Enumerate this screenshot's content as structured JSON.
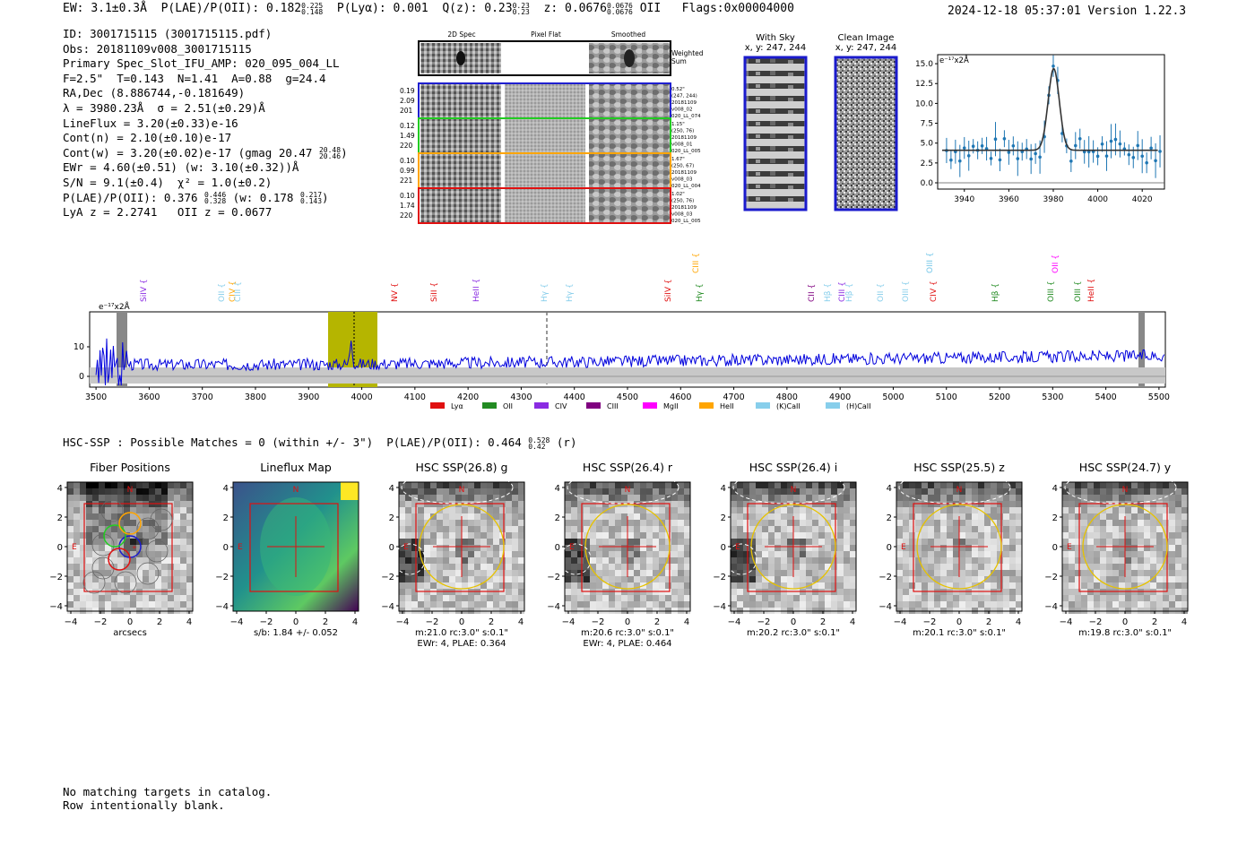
{
  "header": {
    "ew_label": "EW:",
    "ew_value": "3.1±0.3Å",
    "plae_label": "P(LAE)/P(OII):",
    "plae_value": "0.182",
    "plae_hi": "0.225",
    "plae_lo": "0.148",
    "plya_label": "P(Lyα):",
    "plya_value": "0.001",
    "qz_label": "Q(z):",
    "qz_value": "0.23",
    "qz_hi": "0.23",
    "qz_lo": "0.23",
    "z_label": "z:",
    "z_value": "0.0676",
    "z_hi": "0.0676",
    "z_lo": "0.0676",
    "z_line": "OII",
    "flags": "Flags:0x00004000",
    "timestamp": "2024-12-18 05:37:01",
    "version": "Version 1.22.3"
  },
  "info": {
    "id_line": "ID: 3001715115 (3001715115.pdf)",
    "obs_line": "Obs: 20181109v008_3001715115",
    "primary_line": "Primary Spec_Slot_IFU_AMP: 020_095_004_LL",
    "params_line": "F=2.5\"  T=0.143  N=1.41  A=0.88  g=24.4",
    "radec_line": "RA,Dec (8.886744,-0.181649)",
    "lambda_line": "λ = 3980.23Å  σ = 2.51(±0.29)Å",
    "lineflux_line": "LineFlux = 3.20(±0.33)e-16",
    "contn_line": "Cont(n) = 2.10(±0.10)e-17",
    "contw_line": "Cont(w) = 3.20(±0.02)e-17 (gmag 20.47",
    "contw_hi": "20.48",
    "contw_lo": "20.46",
    "contw_end": ")",
    "ewr_line": "EWr = 4.60(±0.51) (w: 3.10(±0.32))Å",
    "sn_line": "S/N = 9.1(±0.4)  χ² = 1.0(±0.2)",
    "plae_line": "P(LAE)/P(OII): 0.376",
    "plae_hi": "0.446",
    "plae_lo": "0.328",
    "plae_w": " (w: 0.178",
    "plae_w_hi": "0.217",
    "plae_w_lo": "0.143",
    "plae_w_end": ")",
    "z_line": "LyA z = 2.2741   OII z = 0.0677"
  },
  "cutouts": {
    "col_headers": [
      "2D Spec",
      "Pixel Flat",
      "Smoothed"
    ],
    "weighted_label": [
      "Weighted",
      "Sum"
    ],
    "rows": [
      {
        "left": [
          "0.19",
          "2.09",
          "201"
        ],
        "right": [
          "0.52\"",
          "(247, 244)",
          "20181109",
          "v008_02",
          "020_LL_074"
        ],
        "color": "#1f1fd0"
      },
      {
        "left": [
          "0.12",
          "1.49",
          "220"
        ],
        "right": [
          "1.15\"",
          "(250, 76)",
          "20181109",
          "v008_01",
          "020_LL_005"
        ],
        "color": "#22cc22"
      },
      {
        "left": [
          "0.10",
          "0.99",
          "221"
        ],
        "right": [
          "1.67\"",
          "(250, 67)",
          "20181109",
          "v008_03",
          "020_LL_004"
        ],
        "color": "#ffa500"
      },
      {
        "left": [
          "0.10",
          "1.74",
          "220"
        ],
        "right": [
          "1.02\"",
          "(250, 76)",
          "20181109",
          "v008_03",
          "020_LL_005"
        ],
        "color": "#e01010"
      }
    ]
  },
  "sky_panels": {
    "with_sky_title": "With Sky",
    "with_sky_coords": "x, y: 247, 244",
    "clean_title": "Clean Image",
    "clean_coords": "x, y: 247, 244"
  },
  "zoom_plot": {
    "unit_label": "e⁻¹⁷x2Å",
    "y_ticks": [
      "15.0",
      "12.5",
      "10.0",
      "7.5",
      "5.0",
      "2.5",
      "0.0"
    ],
    "x_ticks": [
      "3940",
      "3960",
      "3980",
      "4000",
      "4020"
    ]
  },
  "full_spectrum": {
    "unit_label": "e⁻¹⁷x2Å",
    "y_ticks": [
      "10",
      "0"
    ],
    "x_ticks": [
      "3500",
      "3600",
      "3700",
      "3800",
      "3900",
      "4000",
      "4100",
      "4200",
      "4300",
      "4400",
      "4500",
      "4600",
      "4700",
      "4800",
      "4900",
      "5000",
      "5100",
      "5200",
      "5300",
      "5400",
      "5500"
    ],
    "lines": [
      {
        "label": "SiIV",
        "color": "#8a2be2"
      },
      {
        "label": "OII",
        "color": "#87ceeb"
      },
      {
        "label": "CIV",
        "color": "#ffa500"
      },
      {
        "label": "CIII",
        "color": "#87ceeb"
      },
      {
        "label": "NV",
        "color": "#e01010"
      },
      {
        "label": "SiII",
        "color": "#e01010"
      },
      {
        "label": "HeII",
        "color": "#8a2be2"
      },
      {
        "label": "Hγ",
        "color": "#87ceeb"
      },
      {
        "label": "Hγ",
        "color": "#87ceeb"
      },
      {
        "label": "SiIV",
        "color": "#e01010"
      },
      {
        "label": "CIII",
        "color": "#ffa500"
      },
      {
        "label": "Hγ",
        "color": "#228b22"
      },
      {
        "label": "CII",
        "color": "#800080"
      },
      {
        "label": "Hβ",
        "color": "#87ceeb"
      },
      {
        "label": "CIII",
        "color": "#8a2be2"
      },
      {
        "label": "Hβ",
        "color": "#87ceeb"
      },
      {
        "label": "OII",
        "color": "#87ceeb"
      },
      {
        "label": "OIII",
        "color": "#87ceeb"
      },
      {
        "label": "OIII",
        "color": "#87ceeb"
      },
      {
        "label": "CIV",
        "color": "#e01010"
      },
      {
        "label": "OIII",
        "color": "#87ceeb"
      },
      {
        "label": "Hβ",
        "color": "#228b22"
      },
      {
        "label": "OIII",
        "color": "#228b22"
      },
      {
        "label": "OII",
        "color": "#ff00ff"
      },
      {
        "label": "OIII",
        "color": "#228b22"
      },
      {
        "label": "HeII",
        "color": "#e01010"
      }
    ],
    "legend": [
      {
        "label": "Lyα",
        "color": "#e01010"
      },
      {
        "label": "OII",
        "color": "#228b22"
      },
      {
        "label": "CIV",
        "color": "#8a2be2"
      },
      {
        "label": "CIII",
        "color": "#800080"
      },
      {
        "label": "MgII",
        "color": "#ff00ff"
      },
      {
        "label": "HeII",
        "color": "#ffa500"
      },
      {
        "label": "(K)CaII",
        "color": "#87ceeb"
      },
      {
        "label": "(H)CaII",
        "color": "#87ceeb"
      }
    ]
  },
  "hsc": {
    "line_start": "HSC-SSP : Possible Matches = 0 (within +/- 3\")  P(LAE)/P(OII): 0.464",
    "line_hi": "0.528",
    "line_lo": "0.42",
    "line_end": " (r)",
    "panels": [
      {
        "title": "Fiber Positions",
        "caption1": "arcsecs",
        "caption2": ""
      },
      {
        "title": "Lineflux Map",
        "caption1": "s/b: 1.84 +/- 0.052",
        "caption2": ""
      },
      {
        "title": "HSC SSP(26.8) g",
        "caption1": "m:21.0 rc:3.0\"  s:0.1\"",
        "caption2": "EWr: 4, PLAE: 0.364"
      },
      {
        "title": "HSC SSP(26.4) r",
        "caption1": "m:20.6 rc:3.0\"  s:0.1\"",
        "caption2": "EWr: 4, PLAE: 0.464"
      },
      {
        "title": "HSC SSP(26.4) i",
        "caption1": "m:20.2 rc:3.0\"  s:0.1\"",
        "caption2": ""
      },
      {
        "title": "HSC SSP(25.5) z",
        "caption1": "m:20.1 rc:3.0\"  s:0.1\"",
        "caption2": ""
      },
      {
        "title": "HSC SSP(24.7) y",
        "caption1": "m:19.8 rc:3.0\"  s:0.1\"",
        "caption2": ""
      }
    ],
    "y_ticks": [
      "4",
      "2",
      "0",
      "−2",
      "−4"
    ],
    "x_ticks": [
      "−4",
      "−2",
      "0",
      "2",
      "4"
    ],
    "north_label": "N",
    "east_label": "E"
  },
  "footer": {
    "line1": "No matching targets in catalog.",
    "line2": "Row intentionally blank."
  },
  "colors": {
    "spectrum": "#0000dd",
    "highlight": "#b5b500",
    "fit": "#333333",
    "points": "#1f77b4"
  }
}
